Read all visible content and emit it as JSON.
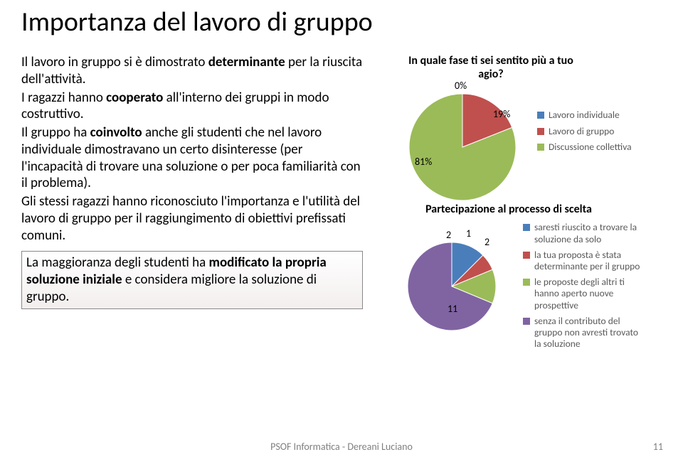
{
  "slide": {
    "title": "Importanza del lavoro di gruppo",
    "para1_pre": "Il lavoro in gruppo si è dimostrato ",
    "para1_b": "determinante ",
    "para1_post": "per la riuscita dell'attività.",
    "para2_pre": "I ragazzi hanno ",
    "para2_b": "cooperato ",
    "para2_post": "all'interno dei gruppi in modo costruttivo.",
    "para3_pre": "Il gruppo ha ",
    "para3_b": "coinvolto ",
    "para3_post": "anche gli studenti che nel lavoro individuale dimostravano un certo disinteresse (per  l'incapacità di trovare una  soluzione o per poca familiarità con il problema).",
    "para4": "Gli stessi ragazzi hanno riconosciuto l'importanza e l'utilità del lavoro di gruppo per il raggiungimento di obiettivi prefissati comuni.",
    "box_pre": "La maggioranza degli studenti ha ",
    "box_b": "modificato la propria soluzione iniziale ",
    "box_post": "e considera migliore la soluzione di gruppo."
  },
  "chart1": {
    "title_l1": "In quale fase ti sei sentito più a tuo",
    "title_l2": "agio?",
    "type": "pie",
    "background_color": "#ffffff",
    "radius": 75,
    "labels": {
      "zero": "0%",
      "nineteen": "19%",
      "eightyone": "81%"
    },
    "slices": [
      {
        "label": "Lavoro individuale",
        "value": 0,
        "color": "#4a7ebb"
      },
      {
        "label": "Lavoro di gruppo",
        "value": 19,
        "color": "#c0504d"
      },
      {
        "label": "Discussione collettiva",
        "value": 81,
        "color": "#9bbb59"
      }
    ]
  },
  "subcaption": "Partecipazione al processo di scelta",
  "chart2": {
    "type": "pie",
    "background_color": "#ffffff",
    "radius": 62,
    "labels": {
      "a": "2",
      "b": "1",
      "c": "2",
      "d": "11"
    },
    "slices": [
      {
        "label": "saresti riuscito a trovare la soluzione da solo",
        "value": 2,
        "color": "#4a7ebb"
      },
      {
        "label": "la tua proposta è stata determinante per il gruppo",
        "value": 1,
        "color": "#c0504d"
      },
      {
        "label": "le proposte degli altri ti hanno aperto nuove prospettive",
        "value": 2,
        "color": "#9bbb59"
      },
      {
        "label": "senza il contributo del gruppo non avresti trovato la soluzione",
        "value": 11,
        "color": "#8064a2"
      }
    ]
  },
  "footer": {
    "center": "PSOF Informatica - Dereani Luciano",
    "page": "11"
  },
  "colors": {
    "blue": "#4a7ebb",
    "red": "#c0504d",
    "green": "#9bbb59",
    "purple": "#8064a2",
    "text_gray": "#595959",
    "footer_gray": "#7f7f7f"
  }
}
